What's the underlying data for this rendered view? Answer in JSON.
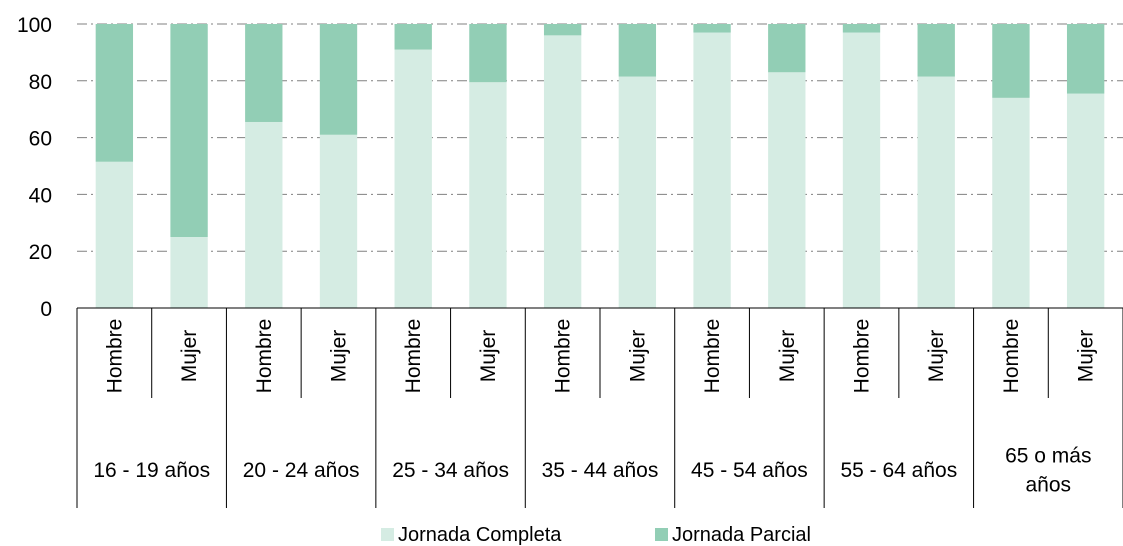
{
  "chart_data": {
    "type": "bar",
    "stacked": true,
    "groups": [
      {
        "label_lines": [
          "16 - 19 años"
        ],
        "categories": [
          "Hombre",
          "Mujer"
        ]
      },
      {
        "label_lines": [
          "20 - 24 años"
        ],
        "categories": [
          "Hombre",
          "Mujer"
        ]
      },
      {
        "label_lines": [
          "25 - 34 años"
        ],
        "categories": [
          "Hombre",
          "Mujer"
        ]
      },
      {
        "label_lines": [
          "35 - 44 años"
        ],
        "categories": [
          "Hombre",
          "Mujer"
        ]
      },
      {
        "label_lines": [
          "45 - 54 años"
        ],
        "categories": [
          "Hombre",
          "Mujer"
        ]
      },
      {
        "label_lines": [
          "55 - 64 años"
        ],
        "categories": [
          "Hombre",
          "Mujer"
        ]
      },
      {
        "label_lines": [
          "65 o más",
          "años"
        ],
        "categories": [
          "Hombre",
          "Mujer"
        ]
      }
    ],
    "series": [
      {
        "name": "Jornada Completa",
        "color": "#d5ece3",
        "values": [
          51.5,
          25,
          65.5,
          61,
          91,
          79.5,
          96,
          81.5,
          97,
          83,
          97,
          81.5,
          74,
          75.5
        ]
      },
      {
        "name": "Jornada Parcial",
        "color": "#92ceb5",
        "values": [
          48.5,
          75,
          34.5,
          39,
          9,
          20.5,
          4,
          18.5,
          3,
          17,
          3,
          18.5,
          26,
          24.5
        ]
      }
    ],
    "ylim": [
      0,
      100
    ],
    "yticks": [
      0,
      20,
      40,
      60,
      80,
      100
    ],
    "grid": true,
    "legend_position": "bottom"
  }
}
